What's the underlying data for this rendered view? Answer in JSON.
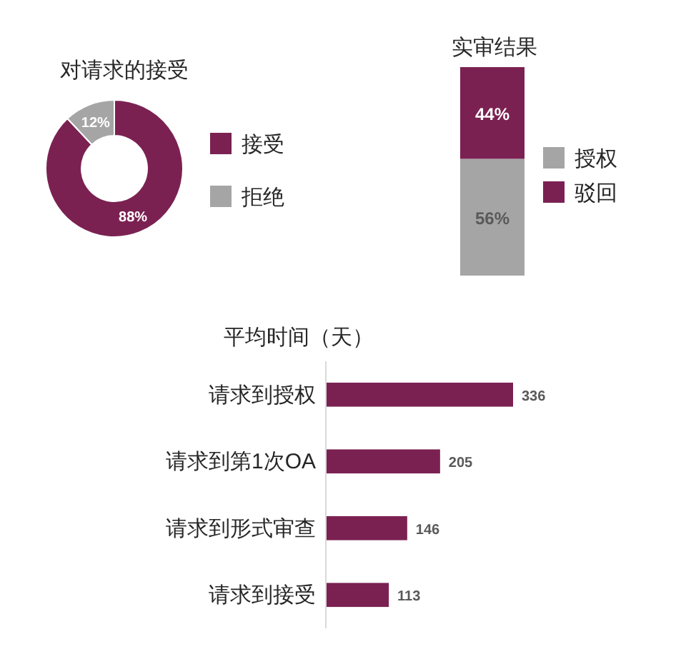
{
  "chart_data": [
    {
      "type": "donut",
      "title": "对请求的接受",
      "categories": [
        "接受",
        "拒绝"
      ],
      "values": [
        88,
        12
      ],
      "colors": [
        "#7b2152",
        "#a5a5a5"
      ],
      "value_labels": [
        "88%",
        "12%"
      ],
      "legend": "right"
    },
    {
      "type": "bar",
      "title": "实审结果",
      "stacked": true,
      "categories": [
        null
      ],
      "series": [
        {
          "name": "授权",
          "color": "#a5a5a5",
          "values": [
            56
          ],
          "value_labels": [
            "56%"
          ]
        },
        {
          "name": "驳回",
          "color": "#7b2152",
          "values": [
            44
          ],
          "value_labels": [
            "44%"
          ]
        }
      ],
      "ylim": [
        0,
        100
      ],
      "tick_labels": false,
      "legend": "right"
    },
    {
      "type": "bar",
      "orientation": "horizontal",
      "title": "平均时间（天）",
      "categories": [
        "请求到授权",
        "请求到第1次OA",
        "请求到形式审查",
        "请求到接受"
      ],
      "series": [
        {
          "color": "#7b2152",
          "values": [
            336,
            205,
            146,
            113
          ]
        }
      ],
      "tick_labels": "y",
      "data_labels": true
    }
  ]
}
